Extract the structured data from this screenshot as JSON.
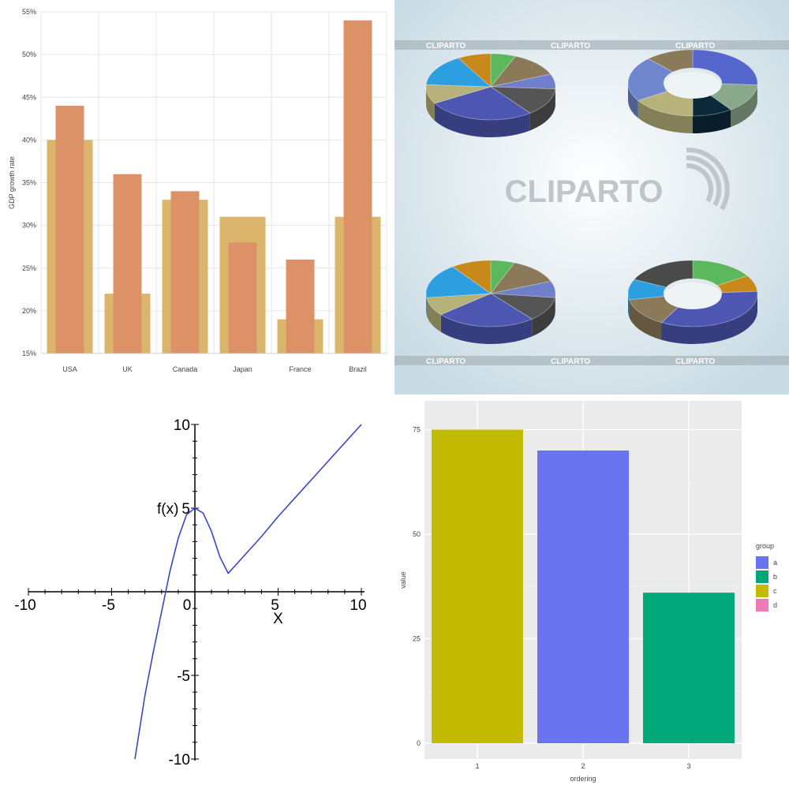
{
  "chart_data": [
    {
      "type": "bar",
      "categories": [
        "USA",
        "UK",
        "Canada",
        "Japan",
        "France",
        "Brazil"
      ],
      "series": [
        {
          "values": [
            40,
            22,
            33,
            31,
            19,
            31
          ],
          "color": "#dcb56c"
        },
        {
          "values": [
            44,
            36,
            34,
            28,
            26,
            54
          ],
          "color": "#dc9266"
        }
      ],
      "ylabel": "GDP growth rate",
      "yticks": [
        "15%",
        "20%",
        "25%",
        "30%",
        "35%",
        "40%",
        "45%",
        "50%",
        "55%"
      ],
      "ylim": [
        15,
        55
      ],
      "grid": true,
      "legend": "none"
    },
    {
      "type": "pie",
      "watermark": "CLIPARTO",
      "strip_labels": [
        "CLIPARTO",
        "CLIPARTO",
        "CLIPARTO"
      ],
      "pies": [
        {
          "style": "pie",
          "slices": [
            {
              "value": 6,
              "color": "#5cb85c"
            },
            {
              "value": 12,
              "color": "#8b7a5a"
            },
            {
              "value": 7,
              "color": "#6f7fc9"
            },
            {
              "value": 13,
              "color": "#555555"
            },
            {
              "value": 26,
              "color": "#4d56b0"
            },
            {
              "value": 9,
              "color": "#b6b27a"
            },
            {
              "value": 15,
              "color": "#2d9fe0"
            },
            {
              "value": 8,
              "color": "#c8891a"
            }
          ]
        },
        {
          "style": "donut",
          "slices": [
            {
              "value": 26,
              "color": "#5566cc"
            },
            {
              "value": 14,
              "color": "#8aa88a"
            },
            {
              "value": 10,
              "color": "#0d2a3a"
            },
            {
              "value": 16,
              "color": "#b6b27a"
            },
            {
              "value": 22,
              "color": "#6f86cc"
            },
            {
              "value": 12,
              "color": "#8b7a5a"
            }
          ]
        },
        {
          "style": "pie",
          "slices": [
            {
              "value": 6,
              "color": "#5cb85c"
            },
            {
              "value": 13,
              "color": "#8b7a5a"
            },
            {
              "value": 8,
              "color": "#6f7fc9"
            },
            {
              "value": 12,
              "color": "#555555"
            },
            {
              "value": 25,
              "color": "#4d56b0"
            },
            {
              "value": 9,
              "color": "#b6b27a"
            },
            {
              "value": 17,
              "color": "#2d9fe0"
            },
            {
              "value": 10,
              "color": "#c8891a"
            }
          ]
        },
        {
          "style": "donut",
          "slices": [
            {
              "value": 16,
              "color": "#5cb85c"
            },
            {
              "value": 8,
              "color": "#c8891a"
            },
            {
              "value": 34,
              "color": "#4d56b0"
            },
            {
              "value": 14,
              "color": "#8b7a5a"
            },
            {
              "value": 10,
              "color": "#2d9fe0"
            },
            {
              "value": 18,
              "color": "#4a4a4a"
            }
          ]
        }
      ]
    },
    {
      "type": "line",
      "ylabel": "f(x)",
      "xlabel": "X",
      "xlim": [
        -10,
        10
      ],
      "ylim": [
        -10,
        10
      ],
      "xtick_labels": [
        "-10",
        "-5",
        "0",
        "5",
        "10"
      ],
      "ytick_labels": [
        "10",
        "5",
        "-5",
        "-10"
      ],
      "series": [
        {
          "color": "#3a45c8",
          "x": [
            -3.6,
            -3,
            -2.5,
            -2,
            -1.5,
            -1,
            -0.5,
            0,
            0.5,
            1,
            1.5,
            2,
            3,
            4,
            5,
            6,
            7,
            8,
            9,
            10
          ],
          "y": [
            -10,
            -6.2,
            -3.6,
            -1.2,
            1.2,
            3.2,
            4.6,
            5,
            4.7,
            3.6,
            2.1,
            1.1,
            2.2,
            3.3,
            4.5,
            5.6,
            6.7,
            7.8,
            8.9,
            10
          ]
        }
      ]
    },
    {
      "type": "bar",
      "categories": [
        "1",
        "2",
        "3"
      ],
      "values": [
        75,
        70,
        36
      ],
      "bar_groups": [
        "c",
        "a",
        "b"
      ],
      "xlabel": "ordering",
      "ylabel": "value",
      "yticks": [
        "0",
        "25",
        "50",
        "75"
      ],
      "ylim": [
        0,
        80
      ],
      "legend": {
        "title": "group",
        "placement": "right",
        "entries": [
          {
            "label": "a",
            "color": "#6b74f0"
          },
          {
            "label": "b",
            "color": "#00a87a"
          },
          {
            "label": "c",
            "color": "#c2bb00"
          },
          {
            "label": "d",
            "color": "#f07ab8"
          }
        ]
      },
      "group_colors": {
        "a": "#6b74f0",
        "b": "#00a87a",
        "c": "#c2bb00",
        "d": "#f07ab8"
      }
    }
  ]
}
